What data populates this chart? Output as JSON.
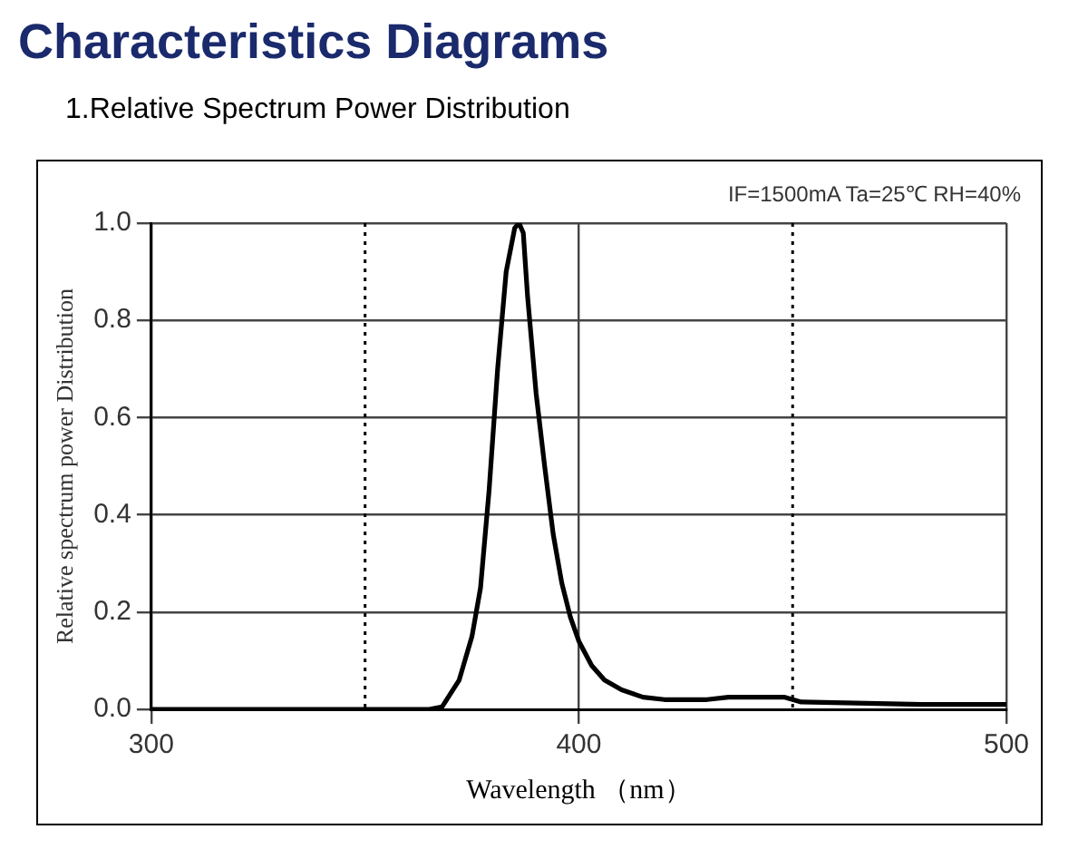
{
  "chart_data": {
    "type": "line",
    "title": "Characteristics Diagrams",
    "subtitle": "1.Relative Spectrum Power Distribution",
    "xlabel": "Wavelength （nm）",
    "ylabel": "Relative spectrum power Distribution",
    "annotations": [
      "IF=1500mA Ta=25℃ RH=40%"
    ],
    "x": [
      300,
      365,
      368,
      372,
      375,
      377,
      379,
      381,
      383,
      385,
      386,
      387,
      388,
      390,
      392,
      394,
      396,
      398,
      400,
      403,
      406,
      410,
      415,
      420,
      430,
      435,
      448,
      452,
      470,
      480,
      500
    ],
    "series": [
      {
        "color": "#000000",
        "values": [
          0,
          0,
          0.005,
          0.06,
          0.15,
          0.25,
          0.45,
          0.7,
          0.9,
          0.99,
          1.0,
          0.98,
          0.85,
          0.65,
          0.5,
          0.36,
          0.26,
          0.19,
          0.14,
          0.09,
          0.06,
          0.04,
          0.025,
          0.02,
          0.02,
          0.025,
          0.025,
          0.015,
          0.012,
          0.01,
          0.01
        ]
      }
    ],
    "xlim": [
      300,
      500
    ],
    "xticks": [
      300,
      400,
      500
    ],
    "ylim": [
      0,
      1.0
    ],
    "yticks": [
      {
        "value": 0,
        "label": "0.0"
      },
      {
        "value": 0.2,
        "label": "0.2"
      },
      {
        "value": 0.4,
        "label": "0.4"
      },
      {
        "value": 0.6,
        "label": "0.6"
      },
      {
        "value": 0.8,
        "label": "0.8"
      },
      {
        "value": 1.0,
        "label": "1.0"
      }
    ],
    "ref_lines": [
      {
        "axis": "x",
        "value": 350,
        "color": "#000000",
        "line_style": "dotted"
      },
      {
        "axis": "x",
        "value": 450,
        "color": "#000000",
        "line_style": "dotted"
      }
    ],
    "grid": true,
    "legend": false,
    "marker": "none",
    "line_style": "solid"
  }
}
